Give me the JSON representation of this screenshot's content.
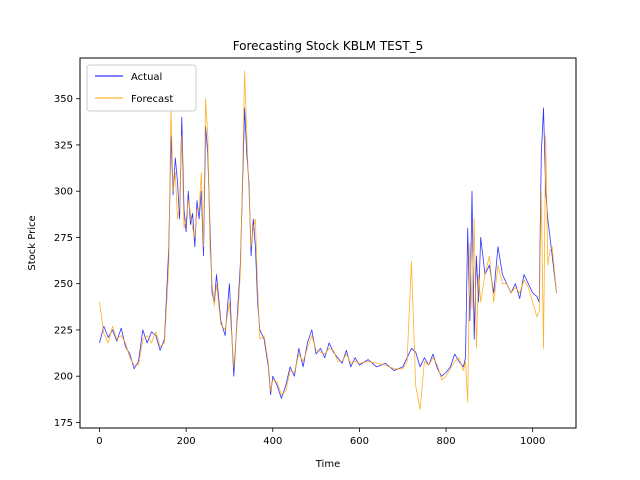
{
  "chart_data": {
    "type": "line",
    "title": "Forecasting Stock KBLM TEST_5",
    "xlabel": "Time",
    "ylabel": "Stock Price",
    "xlim": [
      -45,
      1100
    ],
    "ylim": [
      172,
      372
    ],
    "x_ticks": [
      0,
      200,
      400,
      600,
      800,
      1000
    ],
    "y_ticks": [
      175,
      200,
      225,
      250,
      275,
      300,
      325,
      350
    ],
    "grid": false,
    "legend": {
      "placement": "top-left",
      "entries": [
        "Actual",
        "Forecast"
      ]
    },
    "series": [
      {
        "name": "Actual",
        "color": "#0000ff",
        "x": [
          0,
          10,
          20,
          30,
          40,
          50,
          60,
          70,
          80,
          90,
          100,
          110,
          120,
          130,
          140,
          150,
          160,
          165,
          170,
          175,
          180,
          185,
          190,
          195,
          200,
          205,
          210,
          215,
          220,
          225,
          230,
          235,
          240,
          245,
          250,
          255,
          260,
          265,
          270,
          280,
          290,
          300,
          310,
          320,
          325,
          330,
          335,
          340,
          345,
          350,
          355,
          360,
          365,
          370,
          380,
          390,
          395,
          400,
          410,
          420,
          430,
          440,
          450,
          460,
          470,
          480,
          490,
          500,
          510,
          520,
          530,
          540,
          550,
          560,
          570,
          580,
          590,
          600,
          620,
          640,
          660,
          680,
          700,
          710,
          720,
          730,
          740,
          750,
          760,
          770,
          780,
          790,
          800,
          810,
          820,
          830,
          840,
          845,
          850,
          855,
          860,
          865,
          870,
          875,
          880,
          890,
          900,
          910,
          920,
          930,
          940,
          950,
          960,
          970,
          980,
          990,
          1000,
          1010,
          1015,
          1020,
          1025,
          1030,
          1035,
          1040,
          1045,
          1055
        ],
        "y": [
          218,
          227,
          221,
          225,
          219,
          226,
          216,
          212,
          204,
          208,
          225,
          218,
          224,
          222,
          214,
          220,
          270,
          330,
          298,
          318,
          305,
          285,
          340,
          290,
          278,
          300,
          282,
          288,
          270,
          295,
          285,
          300,
          265,
          335,
          320,
          280,
          245,
          240,
          255,
          230,
          222,
          250,
          200,
          240,
          260,
          300,
          345,
          320,
          305,
          265,
          285,
          270,
          240,
          225,
          220,
          205,
          190,
          200,
          195,
          188,
          195,
          205,
          200,
          215,
          205,
          218,
          225,
          212,
          215,
          210,
          218,
          213,
          210,
          207,
          214,
          205,
          210,
          206,
          209,
          205,
          207,
          203,
          205,
          210,
          215,
          213,
          205,
          210,
          206,
          212,
          204,
          200,
          202,
          205,
          212,
          208,
          205,
          210,
          280,
          230,
          300,
          220,
          265,
          240,
          275,
          255,
          260,
          245,
          270,
          255,
          250,
          245,
          250,
          242,
          255,
          250,
          245,
          243,
          240,
          320,
          345,
          300,
          285,
          275,
          265,
          245
        ],
        "line_width": 0.8
      },
      {
        "name": "Forecast",
        "color": "#ffa500",
        "x": [
          0,
          10,
          20,
          30,
          40,
          50,
          60,
          70,
          80,
          90,
          100,
          110,
          120,
          130,
          140,
          150,
          160,
          165,
          170,
          175,
          180,
          185,
          190,
          195,
          200,
          205,
          210,
          215,
          220,
          225,
          230,
          235,
          240,
          245,
          250,
          255,
          260,
          265,
          270,
          280,
          290,
          300,
          310,
          320,
          325,
          330,
          335,
          340,
          345,
          350,
          355,
          360,
          365,
          370,
          380,
          390,
          395,
          400,
          410,
          420,
          430,
          440,
          450,
          460,
          470,
          480,
          490,
          500,
          510,
          520,
          530,
          540,
          550,
          560,
          570,
          580,
          590,
          600,
          620,
          640,
          660,
          680,
          700,
          710,
          720,
          730,
          740,
          750,
          760,
          770,
          780,
          790,
          800,
          810,
          820,
          830,
          840,
          845,
          850,
          855,
          860,
          865,
          870,
          875,
          880,
          890,
          900,
          910,
          920,
          930,
          940,
          950,
          960,
          970,
          980,
          990,
          1000,
          1010,
          1015,
          1020,
          1025,
          1030,
          1035,
          1040,
          1045,
          1055
        ],
        "y": [
          240,
          223,
          218,
          227,
          220,
          222,
          218,
          210,
          206,
          206,
          220,
          222,
          218,
          224,
          216,
          218,
          260,
          345,
          300,
          310,
          285,
          292,
          330,
          280,
          285,
          295,
          288,
          280,
          275,
          290,
          290,
          310,
          270,
          350,
          330,
          270,
          250,
          238,
          250,
          228,
          225,
          240,
          205,
          235,
          255,
          305,
          365,
          330,
          300,
          270,
          280,
          285,
          248,
          220,
          222,
          207,
          192,
          198,
          197,
          190,
          192,
          203,
          202,
          212,
          208,
          215,
          222,
          214,
          213,
          212,
          215,
          214,
          208,
          208,
          212,
          207,
          208,
          207,
          208,
          207,
          206,
          204,
          204,
          208,
          262,
          195,
          182,
          208,
          206,
          210,
          206,
          198,
          200,
          204,
          208,
          210,
          203,
          208,
          186,
          272,
          236,
          285,
          215,
          255,
          240,
          255,
          265,
          240,
          260,
          250,
          250,
          245,
          248,
          245,
          252,
          248,
          240,
          232,
          235,
          300,
          215,
          330,
          260,
          268,
          270,
          245
        ],
        "line_width": 0.8
      }
    ]
  }
}
